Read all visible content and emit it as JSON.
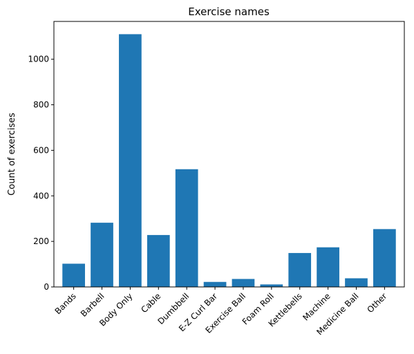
{
  "chart_data": {
    "type": "bar",
    "title": "Exercise names",
    "xlabel": "",
    "ylabel": "Count of exercises",
    "categories": [
      "Bands",
      "Barbell",
      "Body Only",
      "Cable",
      "Dumbbell",
      "E-Z Curl Bar",
      "Exercise Ball",
      "Foam Roll",
      "Kettlebells",
      "Machine",
      "Medicine Ball",
      "Other"
    ],
    "values": [
      102,
      282,
      1110,
      228,
      517,
      22,
      35,
      11,
      149,
      174,
      38,
      254
    ],
    "ylim": [
      0,
      1166
    ],
    "yticks": [
      0,
      200,
      400,
      600,
      800,
      1000
    ],
    "grid": false,
    "bar_color": "#1f77b4"
  }
}
